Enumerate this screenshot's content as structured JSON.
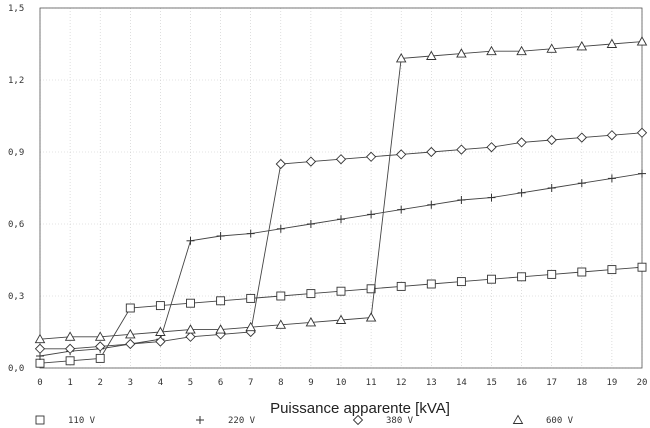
{
  "chart_data": {
    "type": "line",
    "xlabel": "Puissance apparente [kVA]",
    "ylabel": "",
    "title": "",
    "xlim": [
      0,
      20
    ],
    "ylim": [
      0,
      1.5
    ],
    "x_ticks": [
      "0",
      "1",
      "2",
      "3",
      "4",
      "5",
      "6",
      "7",
      "8",
      "9",
      "10",
      "11",
      "12",
      "13",
      "14",
      "15",
      "16",
      "17",
      "18",
      "19",
      "20"
    ],
    "y_ticks": [
      "0,0",
      "0,3",
      "0,6",
      "0,9",
      "1,2",
      "1,5"
    ],
    "y_tick_values": [
      0,
      0.3,
      0.6,
      0.9,
      1.2,
      1.5
    ],
    "grid": true,
    "legend_position": "bottom",
    "x": [
      0,
      1,
      2,
      3,
      4,
      5,
      6,
      7,
      8,
      9,
      10,
      11,
      12,
      13,
      14,
      15,
      16,
      17,
      18,
      19,
      20
    ],
    "series": [
      {
        "name": "110 V",
        "marker": "square",
        "values": [
          0.02,
          0.03,
          0.04,
          0.25,
          0.26,
          0.27,
          0.28,
          0.29,
          0.3,
          0.31,
          0.32,
          0.33,
          0.34,
          0.35,
          0.36,
          0.37,
          0.38,
          0.39,
          0.4,
          0.41,
          0.42
        ]
      },
      {
        "name": "220 V",
        "marker": "plus",
        "values": [
          0.05,
          0.07,
          0.08,
          0.1,
          0.12,
          0.53,
          0.55,
          0.56,
          0.58,
          0.6,
          0.62,
          0.64,
          0.66,
          0.68,
          0.7,
          0.71,
          0.73,
          0.75,
          0.77,
          0.79,
          0.81
        ]
      },
      {
        "name": "380 V",
        "marker": "diamond",
        "values": [
          0.08,
          0.08,
          0.09,
          0.1,
          0.11,
          0.13,
          0.14,
          0.15,
          0.85,
          0.86,
          0.87,
          0.88,
          0.89,
          0.9,
          0.91,
          0.92,
          0.94,
          0.95,
          0.96,
          0.97,
          0.98
        ]
      },
      {
        "name": "600 V",
        "marker": "triangle",
        "values": [
          0.12,
          0.13,
          0.13,
          0.14,
          0.15,
          0.16,
          0.16,
          0.17,
          0.18,
          0.19,
          0.2,
          0.21,
          1.29,
          1.3,
          1.31,
          1.32,
          1.32,
          1.33,
          1.34,
          1.35,
          1.36
        ]
      }
    ]
  }
}
